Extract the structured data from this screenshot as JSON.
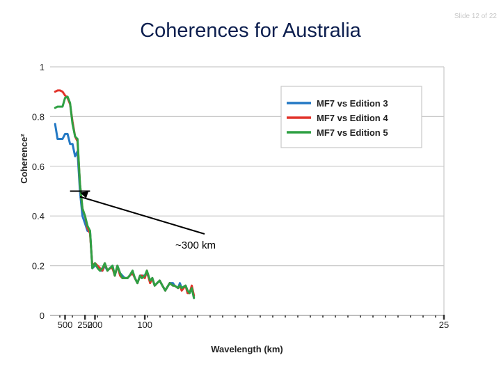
{
  "slide_label": "Slide 12 of 22",
  "chart_data": {
    "type": "line",
    "title": "Coherences for Australia",
    "xlabel": "Wavelength (km)",
    "ylabel": "Coherence²",
    "ylim": [
      0,
      1
    ],
    "y_ticks": [
      {
        "value": 0,
        "label": "0"
      },
      {
        "value": 0.2,
        "label": "0.2"
      },
      {
        "value": 0.4,
        "label": "0.4"
      },
      {
        "value": 0.6,
        "label": "0.6"
      },
      {
        "value": 0.8,
        "label": "0.8"
      },
      {
        "value": 1,
        "label": "1"
      }
    ],
    "x_scale": "reciprocal",
    "x_domain_km": [
      2000,
      25
    ],
    "x_ticks": [
      {
        "value": 500,
        "label": "500"
      },
      {
        "value": 250,
        "label": "250"
      },
      {
        "value": 200,
        "label": "200"
      },
      {
        "value": 100,
        "label": "100"
      },
      {
        "value": 25,
        "label": "25"
      }
    ],
    "grid": true,
    "legend_position": "top-right",
    "series": [
      {
        "name": "MF7 vs Edition 3",
        "color": "#2479c4",
        "x": [
          1000,
          800,
          667,
          571,
          500,
          444,
          400,
          364,
          333,
          308,
          286,
          267,
          250,
          235,
          222,
          211,
          200,
          190,
          182,
          174,
          167,
          160,
          154,
          148,
          143,
          138,
          133,
          129,
          125,
          121,
          118,
          114,
          111,
          108,
          105,
          103,
          100,
          98,
          95,
          93,
          91,
          89,
          87,
          85,
          83,
          82,
          80,
          78,
          77,
          75,
          74,
          73,
          71,
          70,
          69,
          68,
          67
        ],
        "y": [
          0.77,
          0.71,
          0.71,
          0.71,
          0.73,
          0.73,
          0.69,
          0.69,
          0.64,
          0.66,
          0.5,
          0.4,
          0.37,
          0.34,
          0.34,
          0.19,
          0.2,
          0.2,
          0.18,
          0.18,
          0.2,
          0.18,
          0.19,
          0.2,
          0.16,
          0.2,
          0.17,
          0.16,
          0.15,
          0.15,
          0.16,
          0.17,
          0.15,
          0.13,
          0.16,
          0.16,
          0.16,
          0.17,
          0.14,
          0.15,
          0.12,
          0.13,
          0.14,
          0.12,
          0.1,
          0.11,
          0.13,
          0.13,
          0.12,
          0.11,
          0.13,
          0.11,
          0.12,
          0.1,
          0.09,
          0.11,
          0.07
        ]
      },
      {
        "name": "MF7 vs Edition 4",
        "color": "#e2332a",
        "x": [
          1000,
          800,
          667,
          571,
          500,
          444,
          400,
          364,
          333,
          308,
          286,
          267,
          250,
          235,
          222,
          211,
          200,
          190,
          182,
          174,
          167,
          160,
          154,
          148,
          143,
          138,
          133,
          129,
          125,
          121,
          118,
          114,
          111,
          108,
          105,
          103,
          100,
          98,
          95,
          93,
          91,
          89,
          87,
          85,
          83,
          82,
          80,
          78,
          77,
          75,
          74,
          73,
          71,
          70,
          69,
          68,
          67
        ],
        "y": [
          0.9,
          0.905,
          0.905,
          0.9,
          0.885,
          0.875,
          0.85,
          0.78,
          0.72,
          0.7,
          0.53,
          0.43,
          0.4,
          0.35,
          0.33,
          0.2,
          0.21,
          0.2,
          0.19,
          0.18,
          0.21,
          0.18,
          0.19,
          0.19,
          0.16,
          0.2,
          0.16,
          0.15,
          0.15,
          0.15,
          0.16,
          0.17,
          0.15,
          0.13,
          0.16,
          0.16,
          0.15,
          0.18,
          0.13,
          0.15,
          0.12,
          0.13,
          0.14,
          0.12,
          0.1,
          0.11,
          0.13,
          0.12,
          0.12,
          0.11,
          0.12,
          0.1,
          0.12,
          0.09,
          0.09,
          0.12,
          0.08
        ]
      },
      {
        "name": "MF7 vs Edition 5",
        "color": "#2ea043",
        "x": [
          1000,
          800,
          667,
          571,
          500,
          444,
          400,
          364,
          333,
          308,
          286,
          267,
          250,
          235,
          222,
          211,
          200,
          190,
          182,
          174,
          167,
          160,
          154,
          148,
          143,
          138,
          133,
          129,
          125,
          121,
          118,
          114,
          111,
          108,
          105,
          103,
          100,
          98,
          95,
          93,
          91,
          89,
          87,
          85,
          83,
          82,
          80,
          78,
          77,
          75,
          74,
          73,
          71,
          70,
          69,
          68,
          67
        ],
        "y": [
          0.835,
          0.84,
          0.84,
          0.84,
          0.875,
          0.88,
          0.855,
          0.77,
          0.72,
          0.71,
          0.53,
          0.43,
          0.4,
          0.36,
          0.34,
          0.19,
          0.21,
          0.19,
          0.18,
          0.19,
          0.21,
          0.18,
          0.19,
          0.2,
          0.16,
          0.2,
          0.17,
          0.15,
          0.15,
          0.15,
          0.16,
          0.18,
          0.15,
          0.13,
          0.16,
          0.15,
          0.16,
          0.18,
          0.14,
          0.15,
          0.12,
          0.13,
          0.14,
          0.12,
          0.1,
          0.11,
          0.13,
          0.12,
          0.12,
          0.11,
          0.12,
          0.11,
          0.12,
          0.1,
          0.09,
          0.11,
          0.07
        ]
      }
    ],
    "annotation": {
      "text": "~300 km",
      "marker_x_km": 286,
      "marker_y": 0.5,
      "marker_half_width_km": [
        400,
        222
      ]
    }
  }
}
